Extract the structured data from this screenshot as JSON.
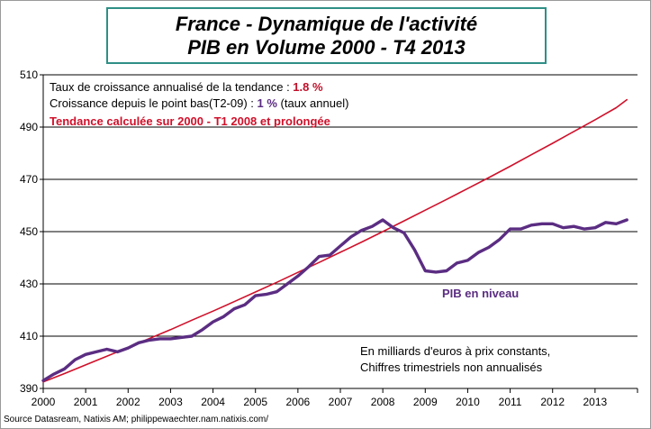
{
  "title": {
    "line1": "France - Dynamique de l'activité",
    "line2": "PIB en Volume 2000 - T4 2013"
  },
  "source": "Source Datasream, Natixis AM; philippewaechter.nam.natixis.com/",
  "colors": {
    "trend": "#d0102a",
    "pib": "#5b2d82",
    "frame_accent": "#2f8f86",
    "note_value": "#c0102a"
  },
  "chart_data": {
    "type": "line",
    "ylim": [
      390,
      510
    ],
    "yticks": [
      390,
      410,
      430,
      450,
      470,
      490,
      510
    ],
    "xlim": [
      2000,
      2014
    ],
    "xticks": [
      2000,
      2001,
      2002,
      2003,
      2004,
      2005,
      2006,
      2007,
      2008,
      2009,
      2010,
      2011,
      2012,
      2013
    ],
    "grid": "horizontal",
    "series": [
      {
        "name": "Tendance calculée sur 2000 - T1 2008 et prolongée",
        "color": "#d0102a",
        "x": [
          2000.0,
          2000.5,
          2001.0,
          2001.5,
          2002.0,
          2002.5,
          2003.0,
          2003.5,
          2004.0,
          2004.5,
          2005.0,
          2005.5,
          2006.0,
          2006.5,
          2007.0,
          2007.5,
          2008.0,
          2008.5,
          2009.0,
          2009.5,
          2010.0,
          2010.5,
          2011.0,
          2011.5,
          2012.0,
          2012.5,
          2013.0,
          2013.5,
          2013.75
        ],
        "values": [
          392.5,
          395.7,
          399.0,
          402.3,
          405.7,
          409.1,
          412.5,
          416.1,
          419.6,
          423.2,
          426.9,
          430.6,
          434.4,
          438.2,
          442.1,
          446.0,
          450.0,
          454.1,
          458.2,
          462.3,
          466.5,
          470.7,
          475.0,
          479.4,
          483.8,
          488.3,
          492.8,
          497.4,
          500.5
        ]
      },
      {
        "name": "PIB en niveau",
        "color": "#5b2d82",
        "x": [
          2000.0,
          2000.25,
          2000.5,
          2000.75,
          2001.0,
          2001.25,
          2001.5,
          2001.75,
          2002.0,
          2002.25,
          2002.5,
          2002.75,
          2003.0,
          2003.25,
          2003.5,
          2003.75,
          2004.0,
          2004.25,
          2004.5,
          2004.75,
          2005.0,
          2005.25,
          2005.5,
          2005.75,
          2006.0,
          2006.25,
          2006.5,
          2006.75,
          2007.0,
          2007.25,
          2007.5,
          2007.75,
          2008.0,
          2008.25,
          2008.5,
          2008.75,
          2009.0,
          2009.25,
          2009.5,
          2009.75,
          2010.0,
          2010.25,
          2010.5,
          2010.75,
          2011.0,
          2011.25,
          2011.5,
          2011.75,
          2012.0,
          2012.25,
          2012.5,
          2012.75,
          2013.0,
          2013.25,
          2013.5,
          2013.75
        ],
        "values": [
          393.0,
          395.5,
          397.5,
          401.0,
          403.0,
          404.0,
          405.0,
          404.0,
          405.5,
          407.5,
          408.5,
          409.0,
          409.0,
          409.5,
          410.0,
          412.5,
          415.5,
          417.5,
          420.5,
          422.0,
          425.5,
          426.0,
          427.0,
          430.0,
          433.0,
          436.5,
          440.5,
          441.0,
          444.5,
          448.0,
          450.5,
          452.0,
          454.5,
          451.5,
          449.5,
          443.0,
          435.0,
          434.5,
          435.0,
          438.0,
          439.0,
          442.0,
          444.0,
          447.0,
          451.0,
          451.0,
          452.5,
          453.0,
          453.0,
          451.5,
          452.0,
          451.0,
          451.5,
          453.5,
          453.0,
          454.5
        ]
      }
    ],
    "annotations": {
      "line1_label": "Taux de croissance annualisé de la tendance : ",
      "line1_value": "1.8 %",
      "line2_label": "Croissance depuis le point bas(T2-09) : ",
      "line2_value": "1 %",
      "line2_suffix": " (taux annuel)",
      "trend_label": "Tendance calculée sur 2000 - T1 2008 et prolongée",
      "pib_label": "PIB en niveau",
      "units_line1": "En milliards d'euros à prix constants,",
      "units_line2": "Chiffres trimestriels non annualisés"
    }
  }
}
